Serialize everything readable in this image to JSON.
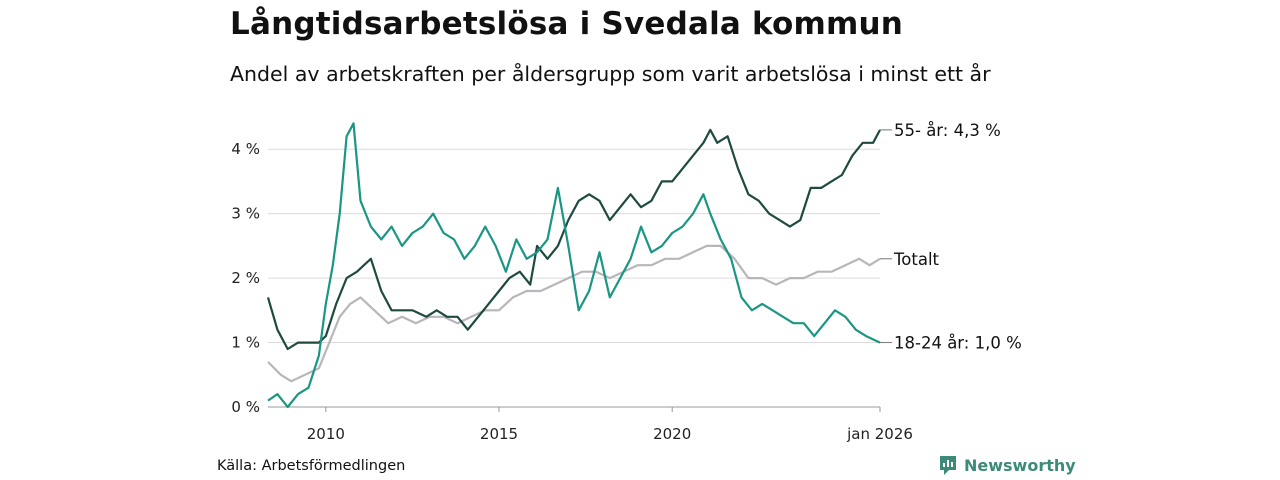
{
  "title": "Långtidsarbetslösa i Svedala kommun",
  "subtitle": "Andel av arbetskraften per åldersgrupp som varit arbetslösa i minst ett år",
  "source": "Källa: Arbetsförmedlingen",
  "brand": "Newsworthy",
  "icon": "newsworthy-logo-icon",
  "colors": {
    "s55": "#1f4a40",
    "s1824": "#1a9683",
    "total": "#b8b6ba",
    "grid": "#dcdcdc",
    "brand": "#3c8b78"
  },
  "chart_data": {
    "type": "line",
    "title": "Långtidsarbetslösa i Svedala kommun",
    "xlabel": "",
    "ylabel": "",
    "xlim": [
      2008.33,
      2026.0
    ],
    "ylim": [
      0,
      4.5
    ],
    "y_ticks": [
      0,
      1,
      2,
      3,
      4
    ],
    "y_tick_labels": [
      "0 %",
      "1 %",
      "2 %",
      "3 %",
      "4 %"
    ],
    "x_ticks": [
      2010,
      2015,
      2020,
      2026.0
    ],
    "x_tick_labels": [
      "2010",
      "2015",
      "2020",
      "jan 2026"
    ],
    "series": [
      {
        "name": "55- år",
        "end_label": "55- år: 4,3 %",
        "x": [
          2008.33,
          2008.6,
          2008.9,
          2009.2,
          2009.5,
          2009.8,
          2010.0,
          2010.3,
          2010.6,
          2010.9,
          2011.1,
          2011.3,
          2011.6,
          2011.9,
          2012.2,
          2012.5,
          2012.9,
          2013.2,
          2013.5,
          2013.8,
          2014.1,
          2014.4,
          2014.7,
          2015.0,
          2015.3,
          2015.6,
          2015.9,
          2016.1,
          2016.4,
          2016.7,
          2017.0,
          2017.3,
          2017.6,
          2017.9,
          2018.2,
          2018.5,
          2018.8,
          2019.1,
          2019.4,
          2019.7,
          2020.0,
          2020.3,
          2020.6,
          2020.9,
          2021.1,
          2021.3,
          2021.6,
          2021.9,
          2022.2,
          2022.5,
          2022.8,
          2023.1,
          2023.4,
          2023.7,
          2024.0,
          2024.3,
          2024.6,
          2024.9,
          2025.2,
          2025.5,
          2025.8,
          2026.0
        ],
        "values": [
          1.7,
          1.2,
          0.9,
          1.0,
          1.0,
          1.0,
          1.1,
          1.6,
          2.0,
          2.1,
          2.2,
          2.3,
          1.8,
          1.5,
          1.5,
          1.5,
          1.4,
          1.5,
          1.4,
          1.4,
          1.2,
          1.4,
          1.6,
          1.8,
          2.0,
          2.1,
          1.9,
          2.5,
          2.3,
          2.5,
          2.9,
          3.2,
          3.3,
          3.2,
          2.9,
          3.1,
          3.3,
          3.1,
          3.2,
          3.5,
          3.5,
          3.7,
          3.9,
          4.1,
          4.3,
          4.1,
          4.2,
          3.7,
          3.3,
          3.2,
          3.0,
          2.9,
          2.8,
          2.9,
          3.4,
          3.4,
          3.5,
          3.6,
          3.9,
          4.1,
          4.1,
          4.3
        ]
      },
      {
        "name": "18-24 år",
        "end_label": "18-24 år: 1,0 %",
        "x": [
          2008.33,
          2008.6,
          2008.9,
          2009.2,
          2009.5,
          2009.8,
          2010.0,
          2010.2,
          2010.4,
          2010.6,
          2010.8,
          2011.0,
          2011.3,
          2011.6,
          2011.9,
          2012.2,
          2012.5,
          2012.8,
          2013.1,
          2013.4,
          2013.7,
          2014.0,
          2014.3,
          2014.6,
          2014.9,
          2015.2,
          2015.5,
          2015.8,
          2016.1,
          2016.4,
          2016.7,
          2017.0,
          2017.3,
          2017.6,
          2017.9,
          2018.2,
          2018.5,
          2018.8,
          2019.1,
          2019.4,
          2019.7,
          2020.0,
          2020.3,
          2020.6,
          2020.9,
          2021.1,
          2021.4,
          2021.7,
          2022.0,
          2022.3,
          2022.6,
          2022.9,
          2023.2,
          2023.5,
          2023.8,
          2024.1,
          2024.4,
          2024.7,
          2025.0,
          2025.3,
          2025.6,
          2026.0
        ],
        "values": [
          0.1,
          0.2,
          0.0,
          0.2,
          0.3,
          0.8,
          1.6,
          2.2,
          3.0,
          4.2,
          4.4,
          3.2,
          2.8,
          2.6,
          2.8,
          2.5,
          2.7,
          2.8,
          3.0,
          2.7,
          2.6,
          2.3,
          2.5,
          2.8,
          2.5,
          2.1,
          2.6,
          2.3,
          2.4,
          2.6,
          3.4,
          2.5,
          1.5,
          1.8,
          2.4,
          1.7,
          2.0,
          2.3,
          2.8,
          2.4,
          2.5,
          2.7,
          2.8,
          3.0,
          3.3,
          3.0,
          2.6,
          2.3,
          1.7,
          1.5,
          1.6,
          1.5,
          1.4,
          1.3,
          1.3,
          1.1,
          1.3,
          1.5,
          1.4,
          1.2,
          1.1,
          1.0
        ]
      },
      {
        "name": "Totalt",
        "end_label": "Totalt",
        "x": [
          2008.33,
          2008.7,
          2009.0,
          2009.4,
          2009.8,
          2010.1,
          2010.4,
          2010.7,
          2011.0,
          2011.4,
          2011.8,
          2012.2,
          2012.6,
          2013.0,
          2013.4,
          2013.8,
          2014.2,
          2014.6,
          2015.0,
          2015.4,
          2015.8,
          2016.2,
          2016.6,
          2017.0,
          2017.4,
          2017.8,
          2018.2,
          2018.6,
          2019.0,
          2019.4,
          2019.8,
          2020.2,
          2020.6,
          2021.0,
          2021.4,
          2021.8,
          2022.2,
          2022.6,
          2023.0,
          2023.4,
          2023.8,
          2024.2,
          2024.6,
          2025.0,
          2025.4,
          2025.7,
          2026.0
        ],
        "values": [
          0.7,
          0.5,
          0.4,
          0.5,
          0.6,
          1.0,
          1.4,
          1.6,
          1.7,
          1.5,
          1.3,
          1.4,
          1.3,
          1.4,
          1.4,
          1.3,
          1.4,
          1.5,
          1.5,
          1.7,
          1.8,
          1.8,
          1.9,
          2.0,
          2.1,
          2.1,
          2.0,
          2.1,
          2.2,
          2.2,
          2.3,
          2.3,
          2.4,
          2.5,
          2.5,
          2.3,
          2.0,
          2.0,
          1.9,
          2.0,
          2.0,
          2.1,
          2.1,
          2.2,
          2.3,
          2.2,
          2.3
        ]
      }
    ]
  }
}
